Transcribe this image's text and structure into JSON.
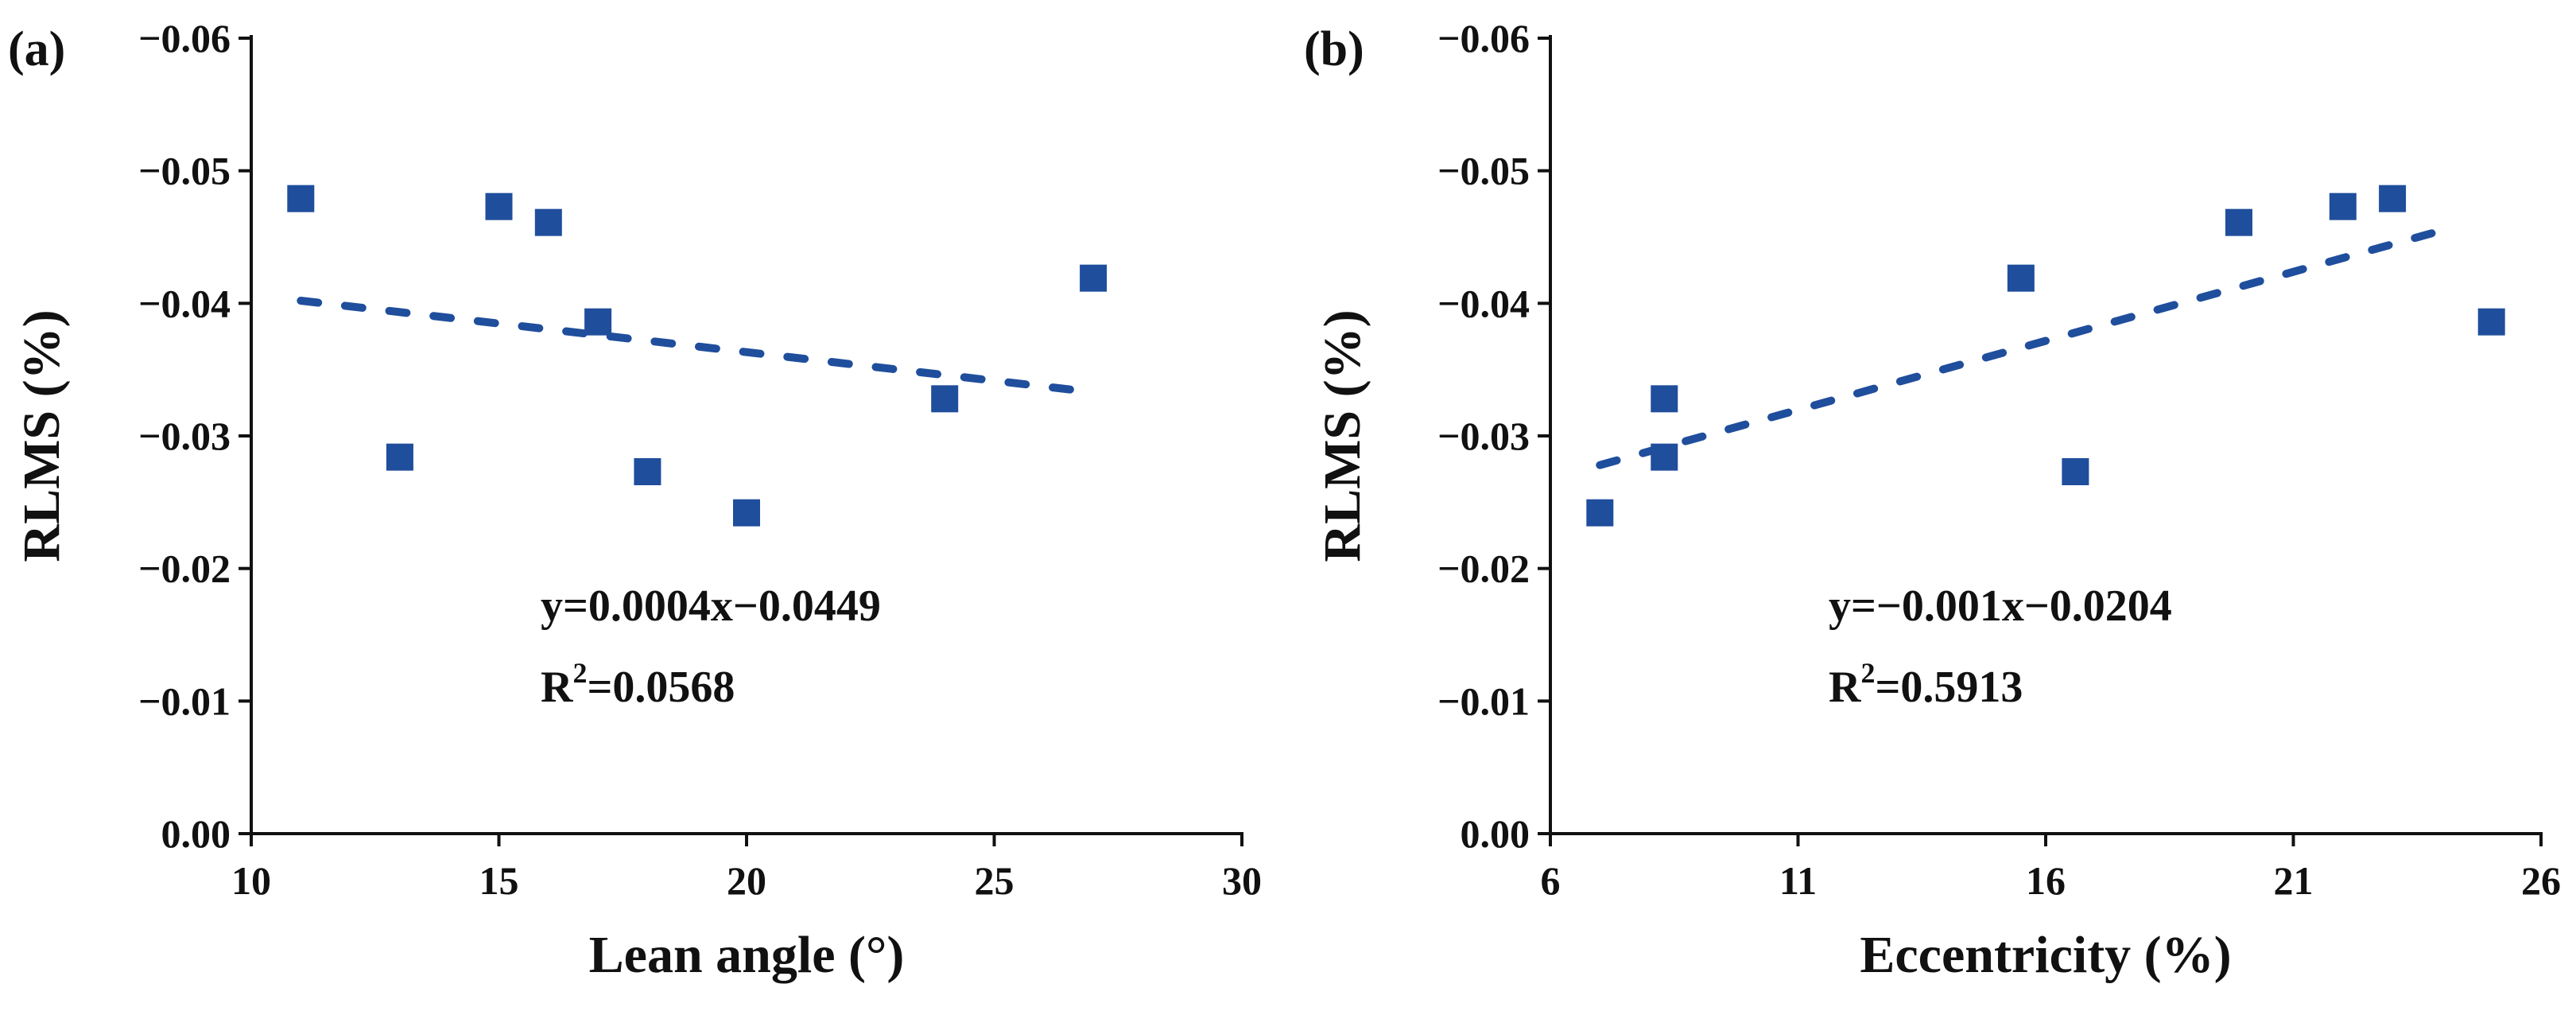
{
  "colors": {
    "marker": "#1f4e9c",
    "trend": "#1f4e9c",
    "axis": "#111111"
  },
  "chart_data": [
    {
      "type": "scatter",
      "panel_label": "(a)",
      "xlabel": "Lean angle (°)",
      "ylabel": "RLMS (%)",
      "xlim": [
        10,
        30
      ],
      "ylim": [
        0.0,
        -0.06
      ],
      "xticks": [
        10,
        15,
        20,
        25,
        30
      ],
      "xtick_labels": [
        "10",
        "15",
        "20",
        "25",
        "30"
      ],
      "yticks": [
        0.0,
        -0.01,
        -0.02,
        -0.03,
        -0.04,
        -0.05,
        -0.06
      ],
      "ytick_labels": [
        "0.00",
        "−0.01",
        "−0.02",
        "−0.03",
        "−0.04",
        "−0.05",
        "−0.06"
      ],
      "points": [
        {
          "x": 11,
          "y": -0.0479
        },
        {
          "x": 13,
          "y": -0.0284
        },
        {
          "x": 15,
          "y": -0.0473
        },
        {
          "x": 16,
          "y": -0.0461
        },
        {
          "x": 17,
          "y": -0.0386
        },
        {
          "x": 18,
          "y": -0.0273
        },
        {
          "x": 20,
          "y": -0.0242
        },
        {
          "x": 24,
          "y": -0.0328
        },
        {
          "x": 27,
          "y": -0.0419
        }
      ],
      "trendline": {
        "x": [
          11,
          27
        ],
        "y": [
          -0.0402,
          -0.0333
        ],
        "style": "dotted"
      },
      "equation": "y=0.0004x−0.0449",
      "r2_label": "R",
      "r2_sup": "2",
      "r2_value": "=0.0568",
      "grid": false
    },
    {
      "type": "scatter",
      "panel_label": "(b)",
      "xlabel": "Eccentricity (%)",
      "ylabel": "RLMS (%)",
      "xlim": [
        6,
        26
      ],
      "ylim": [
        0.0,
        -0.06
      ],
      "xticks": [
        6,
        11,
        16,
        21,
        26
      ],
      "xtick_labels": [
        "6",
        "11",
        "16",
        "21",
        "26"
      ],
      "yticks": [
        0.0,
        -0.01,
        -0.02,
        -0.03,
        -0.04,
        -0.05,
        -0.06
      ],
      "ytick_labels": [
        "0.00",
        "−0.01",
        "−0.02",
        "−0.03",
        "−0.04",
        "−0.05",
        "−0.06"
      ],
      "points": [
        {
          "x": 7.0,
          "y": -0.0242
        },
        {
          "x": 8.3,
          "y": -0.0328
        },
        {
          "x": 8.3,
          "y": -0.0284
        },
        {
          "x": 15.5,
          "y": -0.0419
        },
        {
          "x": 16.6,
          "y": -0.0273
        },
        {
          "x": 19.9,
          "y": -0.0461
        },
        {
          "x": 22.0,
          "y": -0.0473
        },
        {
          "x": 23.0,
          "y": -0.0479
        },
        {
          "x": 25.0,
          "y": -0.0386
        }
      ],
      "trendline": {
        "x": [
          7.0,
          24.0
        ],
        "y": [
          -0.0278,
          -0.0455
        ],
        "style": "dotted"
      },
      "equation": "y=−0.001x−0.0204",
      "r2_label": "R",
      "r2_sup": "2",
      "r2_value": "=0.5913",
      "grid": false
    }
  ]
}
